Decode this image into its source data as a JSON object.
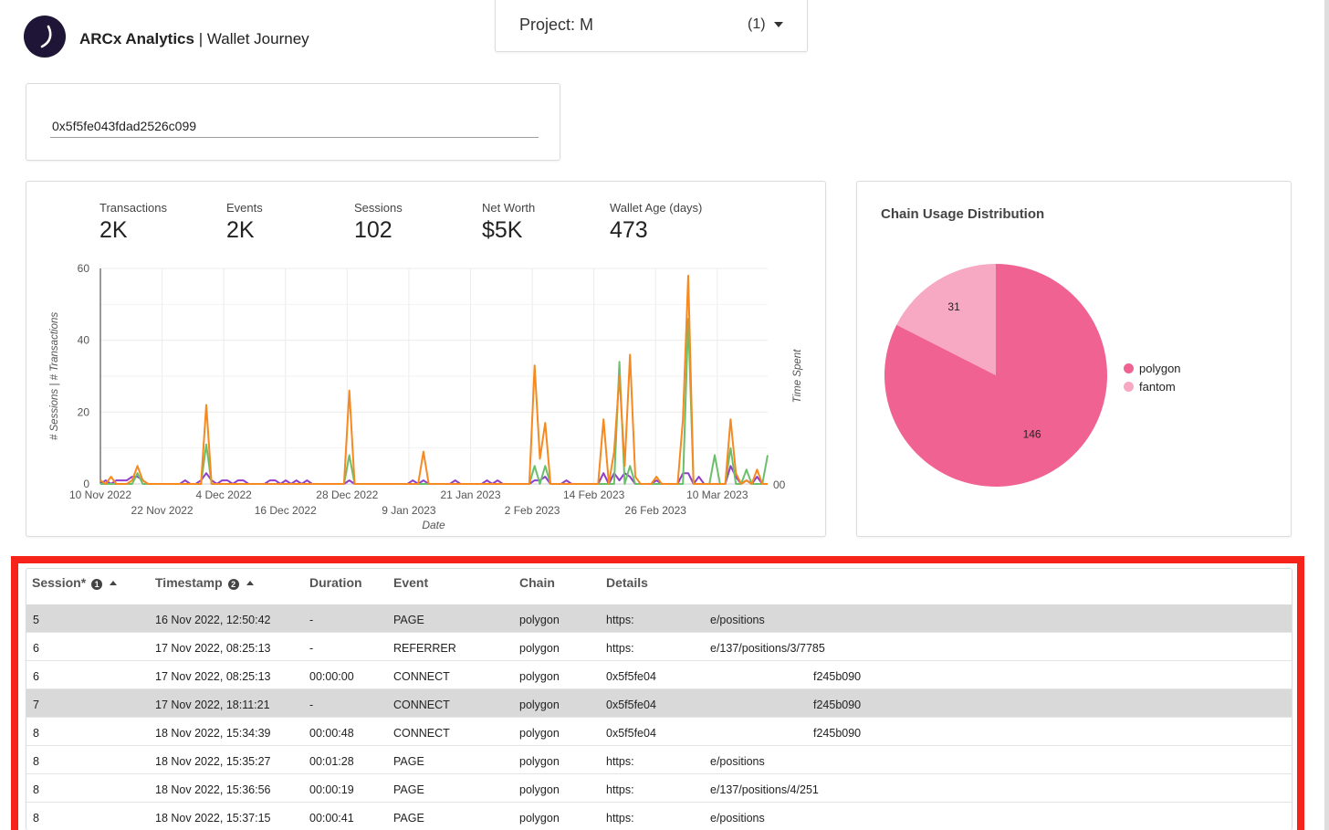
{
  "header": {
    "app_name": "ARCx Analytics",
    "separator": " | ",
    "page_name": "Wallet Journey"
  },
  "project": {
    "label": "Project: M",
    "count": "(1)"
  },
  "wallet": {
    "address": "0x5f5fe043fdad2526c099"
  },
  "metrics": [
    {
      "label": "Transactions",
      "value": "2K"
    },
    {
      "label": "Events",
      "value": "2K"
    },
    {
      "label": "Sessions",
      "value": "102"
    },
    {
      "label": "Net Worth",
      "value": "$5K"
    },
    {
      "label": "Wallet Age (days)",
      "value": "473"
    }
  ],
  "chart_data": {
    "type": "line",
    "x_ticks_row1": [
      "10 Nov 2022",
      "4 Dec 2022",
      "28 Dec 2022",
      "21 Jan 2023",
      "14 Feb 2023",
      "10 Mar 2023"
    ],
    "x_ticks_row2": [
      "22 Nov 2022",
      "16 Dec 2022",
      "9 Jan 2023",
      "2 Feb 2023",
      "26 Feb 2023"
    ],
    "y_ticks": [
      "60",
      "40",
      "20",
      "0"
    ],
    "ylabel": "# Sessions | # Transactions",
    "y2label": "Time Spent",
    "y2_ticks": [
      "00"
    ],
    "xlabel": "Date",
    "ylim": [
      0,
      60
    ],
    "xlim": [
      "2022-11-10",
      "2023-03-16"
    ],
    "series": [
      {
        "color": "#f6891f",
        "points": [
          [
            "2022-11-10",
            1
          ],
          [
            "2022-11-11",
            0
          ],
          [
            "2022-11-12",
            2
          ],
          [
            "2022-11-13",
            0
          ],
          [
            "2022-11-14",
            0
          ],
          [
            "2022-11-15",
            0
          ],
          [
            "2022-11-16",
            1
          ],
          [
            "2022-11-17",
            5
          ],
          [
            "2022-11-18",
            1
          ],
          [
            "2022-11-19",
            0
          ],
          [
            "2022-11-20",
            0
          ],
          [
            "2022-11-26",
            0
          ],
          [
            "2022-11-27",
            0
          ],
          [
            "2022-11-28",
            0
          ],
          [
            "2022-11-29",
            0
          ],
          [
            "2022-11-30",
            22
          ],
          [
            "2022-12-01",
            0
          ],
          [
            "2022-12-02",
            0
          ],
          [
            "2022-12-03",
            0
          ],
          [
            "2022-12-23",
            0
          ],
          [
            "2022-12-24",
            0
          ],
          [
            "2022-12-25",
            0
          ],
          [
            "2022-12-26",
            0
          ],
          [
            "2022-12-27",
            26
          ],
          [
            "2022-12-28",
            0
          ],
          [
            "2022-12-29",
            0
          ],
          [
            "2023-01-08",
            0
          ],
          [
            "2023-01-09",
            0
          ],
          [
            "2023-01-10",
            9
          ],
          [
            "2023-01-11",
            0
          ],
          [
            "2023-01-27",
            0
          ],
          [
            "2023-01-28",
            0
          ],
          [
            "2023-01-29",
            0
          ],
          [
            "2023-01-30",
            0
          ],
          [
            "2023-01-31",
            33
          ],
          [
            "2023-02-01",
            7
          ],
          [
            "2023-02-02",
            17
          ],
          [
            "2023-02-03",
            0
          ],
          [
            "2023-02-10",
            0
          ],
          [
            "2023-02-11",
            0
          ],
          [
            "2023-02-12",
            0
          ],
          [
            "2023-02-13",
            18
          ],
          [
            "2023-02-14",
            0
          ],
          [
            "2023-02-15",
            9
          ],
          [
            "2023-02-16",
            30
          ],
          [
            "2023-02-17",
            5
          ],
          [
            "2023-02-18",
            36
          ],
          [
            "2023-02-19",
            2
          ],
          [
            "2023-02-20",
            0
          ],
          [
            "2023-02-21",
            0
          ],
          [
            "2023-02-22",
            0
          ],
          [
            "2023-02-23",
            2
          ],
          [
            "2023-02-24",
            0
          ],
          [
            "2023-02-25",
            0
          ],
          [
            "2023-02-26",
            0
          ],
          [
            "2023-02-27",
            0
          ],
          [
            "2023-02-28",
            18
          ],
          [
            "2023-03-01",
            58
          ],
          [
            "2023-03-02",
            0
          ],
          [
            "2023-03-03",
            0
          ],
          [
            "2023-03-04",
            0
          ],
          [
            "2023-03-05",
            0
          ],
          [
            "2023-03-06",
            0
          ],
          [
            "2023-03-07",
            0
          ],
          [
            "2023-03-08",
            0
          ],
          [
            "2023-03-09",
            18
          ],
          [
            "2023-03-10",
            3
          ],
          [
            "2023-03-11",
            0
          ],
          [
            "2023-03-12",
            1
          ],
          [
            "2023-03-13",
            0
          ],
          [
            "2023-03-14",
            4
          ],
          [
            "2023-03-15",
            0
          ],
          [
            "2023-03-16",
            0
          ]
        ]
      },
      {
        "color": "#6cbf6a",
        "points": [
          [
            "2022-11-10",
            0
          ],
          [
            "2022-11-16",
            0
          ],
          [
            "2022-11-17",
            3
          ],
          [
            "2022-11-18",
            0
          ],
          [
            "2022-11-29",
            0
          ],
          [
            "2022-11-30",
            11
          ],
          [
            "2022-12-01",
            0
          ],
          [
            "2022-12-26",
            0
          ],
          [
            "2022-12-27",
            8
          ],
          [
            "2022-12-28",
            0
          ],
          [
            "2023-01-30",
            0
          ],
          [
            "2023-01-31",
            5
          ],
          [
            "2023-02-01",
            0
          ],
          [
            "2023-02-02",
            5
          ],
          [
            "2023-02-03",
            0
          ],
          [
            "2023-02-15",
            0
          ],
          [
            "2023-02-16",
            34
          ],
          [
            "2023-02-17",
            0
          ],
          [
            "2023-02-18",
            5
          ],
          [
            "2023-02-19",
            0
          ],
          [
            "2023-02-28",
            0
          ],
          [
            "2023-03-01",
            46
          ],
          [
            "2023-03-02",
            0
          ],
          [
            "2023-03-05",
            0
          ],
          [
            "2023-03-06",
            8
          ],
          [
            "2023-03-07",
            0
          ],
          [
            "2023-03-08",
            0
          ],
          [
            "2023-03-09",
            10
          ],
          [
            "2023-03-10",
            0
          ],
          [
            "2023-03-11",
            0
          ],
          [
            "2023-03-12",
            4
          ],
          [
            "2023-03-13",
            0
          ],
          [
            "2023-03-14",
            0
          ],
          [
            "2023-03-15",
            0
          ],
          [
            "2023-03-16",
            8
          ]
        ]
      },
      {
        "color": "#8f3fc9",
        "points": [
          [
            "2022-11-10",
            0
          ],
          [
            "2022-11-11",
            1
          ],
          [
            "2022-11-12",
            0
          ],
          [
            "2022-11-13",
            1
          ],
          [
            "2022-11-14",
            1
          ],
          [
            "2022-11-15",
            1
          ],
          [
            "2022-11-16",
            2
          ],
          [
            "2022-11-17",
            2
          ],
          [
            "2022-11-18",
            1
          ],
          [
            "2022-11-19",
            0
          ],
          [
            "2022-11-20",
            0
          ],
          [
            "2022-11-25",
            0
          ],
          [
            "2022-11-26",
            1
          ],
          [
            "2022-11-27",
            0
          ],
          [
            "2022-11-28",
            0
          ],
          [
            "2022-11-29",
            1
          ],
          [
            "2022-11-30",
            3
          ],
          [
            "2022-12-01",
            1
          ],
          [
            "2022-12-02",
            0
          ],
          [
            "2022-12-03",
            1
          ],
          [
            "2022-12-04",
            1
          ],
          [
            "2022-12-05",
            0
          ],
          [
            "2022-12-06",
            1
          ],
          [
            "2022-12-07",
            1
          ],
          [
            "2022-12-08",
            0
          ],
          [
            "2022-12-11",
            0
          ],
          [
            "2022-12-12",
            1
          ],
          [
            "2022-12-13",
            1
          ],
          [
            "2022-12-14",
            0
          ],
          [
            "2022-12-15",
            1
          ],
          [
            "2022-12-16",
            0
          ],
          [
            "2022-12-17",
            1
          ],
          [
            "2022-12-18",
            0
          ],
          [
            "2022-12-19",
            1
          ],
          [
            "2022-12-20",
            0
          ],
          [
            "2022-12-26",
            0
          ],
          [
            "2022-12-27",
            1
          ],
          [
            "2022-12-28",
            0
          ],
          [
            "2023-01-07",
            0
          ],
          [
            "2023-01-08",
            1
          ],
          [
            "2023-01-09",
            0
          ],
          [
            "2023-01-10",
            1
          ],
          [
            "2023-01-11",
            0
          ],
          [
            "2023-01-15",
            0
          ],
          [
            "2023-01-16",
            1
          ],
          [
            "2023-01-17",
            0
          ],
          [
            "2023-01-21",
            0
          ],
          [
            "2023-01-22",
            1
          ],
          [
            "2023-01-23",
            0
          ],
          [
            "2023-01-24",
            1
          ],
          [
            "2023-01-25",
            0
          ],
          [
            "2023-01-30",
            0
          ],
          [
            "2023-01-31",
            1
          ],
          [
            "2023-02-01",
            1
          ],
          [
            "2023-02-02",
            2
          ],
          [
            "2023-02-03",
            0
          ],
          [
            "2023-02-05",
            0
          ],
          [
            "2023-02-06",
            1
          ],
          [
            "2023-02-07",
            0
          ],
          [
            "2023-02-12",
            0
          ],
          [
            "2023-02-13",
            3
          ],
          [
            "2023-02-14",
            0
          ],
          [
            "2023-02-15",
            3
          ],
          [
            "2023-02-16",
            1
          ],
          [
            "2023-02-17",
            3
          ],
          [
            "2023-02-18",
            2
          ],
          [
            "2023-02-19",
            0
          ],
          [
            "2023-02-22",
            0
          ],
          [
            "2023-02-23",
            1
          ],
          [
            "2023-02-24",
            0
          ],
          [
            "2023-02-27",
            0
          ],
          [
            "2023-02-28",
            3
          ],
          [
            "2023-03-01",
            3
          ],
          [
            "2023-03-02",
            0
          ],
          [
            "2023-03-03",
            2
          ],
          [
            "2023-03-04",
            0
          ],
          [
            "2023-03-08",
            0
          ],
          [
            "2023-03-09",
            5
          ],
          [
            "2023-03-10",
            2
          ],
          [
            "2023-03-11",
            0
          ],
          [
            "2023-03-12",
            1
          ],
          [
            "2023-03-13",
            0
          ],
          [
            "2023-03-14",
            2
          ],
          [
            "2023-03-15",
            0
          ],
          [
            "2023-03-16",
            0
          ]
        ]
      }
    ]
  },
  "pie": {
    "title": "Chain Usage Distribution",
    "chart_data": {
      "type": "pie",
      "slices": [
        {
          "label": "polygon",
          "value": 146,
          "color": "#f06292"
        },
        {
          "label": "fantom",
          "value": 31,
          "color": "#f7a8c2"
        }
      ]
    }
  },
  "table": {
    "columns": [
      {
        "label": "Session*",
        "badge": "1",
        "sortable": true
      },
      {
        "label": "Timestamp",
        "badge": "2",
        "sortable": true
      },
      {
        "label": "Duration"
      },
      {
        "label": "Event"
      },
      {
        "label": "Chain"
      },
      {
        "label": "Details"
      }
    ],
    "rows": [
      {
        "session": "5",
        "timestamp": "16 Nov 2022, 12:50:42",
        "duration": "-",
        "event": "PAGE",
        "chain": "polygon",
        "details_a": "https:",
        "details_b": "e/positions",
        "selected": true
      },
      {
        "session": "6",
        "timestamp": "17 Nov 2022, 08:25:13",
        "duration": "-",
        "event": "REFERRER",
        "chain": "polygon",
        "details_a": "https:",
        "details_b": "e/137/positions/3/7785",
        "selected": false
      },
      {
        "session": "6",
        "timestamp": "17 Nov 2022, 08:25:13",
        "duration": "00:00:00",
        "event": "CONNECT",
        "chain": "polygon",
        "details_a": "0x5f5fe04",
        "details_b": "f245b090",
        "selected": false
      },
      {
        "session": "7",
        "timestamp": "17 Nov 2022, 18:11:21",
        "duration": "-",
        "event": "CONNECT",
        "chain": "polygon",
        "details_a": "0x5f5fe04",
        "details_b": "f245b090",
        "selected": true
      },
      {
        "session": "8",
        "timestamp": "18 Nov 2022, 15:34:39",
        "duration": "00:00:48",
        "event": "CONNECT",
        "chain": "polygon",
        "details_a": "0x5f5fe04",
        "details_b": "f245b090",
        "selected": false
      },
      {
        "session": "8",
        "timestamp": "18 Nov 2022, 15:35:27",
        "duration": "00:01:28",
        "event": "PAGE",
        "chain": "polygon",
        "details_a": "https:",
        "details_b": "e/positions",
        "selected": false
      },
      {
        "session": "8",
        "timestamp": "18 Nov 2022, 15:36:56",
        "duration": "00:00:19",
        "event": "PAGE",
        "chain": "polygon",
        "details_a": "https:",
        "details_b": "e/137/positions/4/251",
        "selected": false
      },
      {
        "session": "8",
        "timestamp": "18 Nov 2022, 15:37:15",
        "duration": "00:00:41",
        "event": "PAGE",
        "chain": "polygon",
        "details_a": "https:",
        "details_b": "e/positions",
        "selected": false
      }
    ]
  }
}
